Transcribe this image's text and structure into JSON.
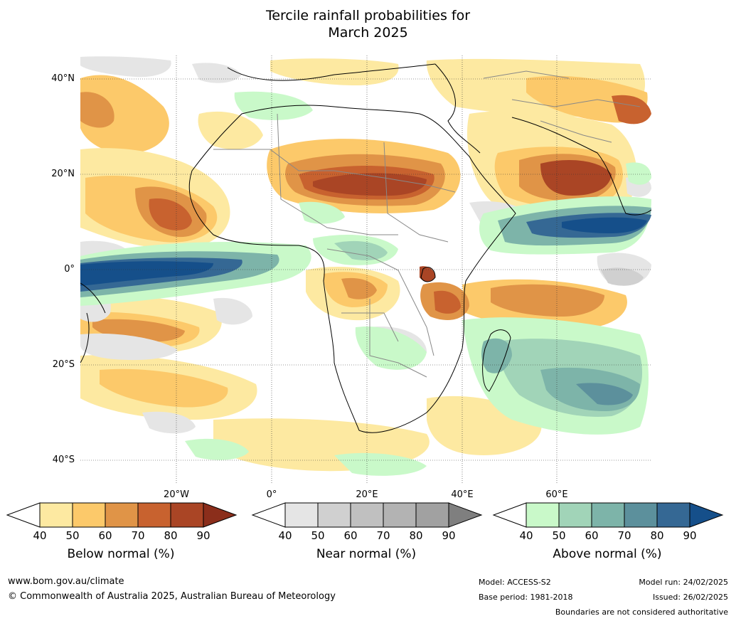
{
  "title": {
    "line1": "Tercile rainfall probabilities for",
    "line2": "March 2025"
  },
  "map": {
    "lat_labels": [
      "40°N",
      "20°N",
      "0°",
      "20°S",
      "40°S"
    ],
    "lon_labels": [
      "20°W",
      "0°",
      "20°E",
      "40°E",
      "60°E"
    ]
  },
  "colorbars": [
    {
      "title": "Below normal (%)",
      "ticks": [
        "40",
        "50",
        "60",
        "70",
        "80",
        "90"
      ],
      "colors": [
        "#ffffff",
        "#fde9a1",
        "#fcc96a",
        "#e09447",
        "#c8622f",
        "#aa4525",
        "#8b2e1b"
      ]
    },
    {
      "title": "Near normal (%)",
      "ticks": [
        "40",
        "50",
        "60",
        "70",
        "80",
        "90"
      ],
      "colors": [
        "#ffffff",
        "#e5e5e5",
        "#d0d0d0",
        "#c0c0c0",
        "#b3b3b3",
        "#a1a1a1",
        "#7f7f7f"
      ]
    },
    {
      "title": "Above normal (%)",
      "ticks": [
        "40",
        "50",
        "60",
        "70",
        "80",
        "90"
      ],
      "colors": [
        "#ffffff",
        "#c9f9c9",
        "#a1d4b8",
        "#7db4a9",
        "#5c909c",
        "#356894",
        "#154f8a"
      ]
    }
  ],
  "footer": {
    "website": "www.bom.gov.au/climate",
    "copyright": "© Commonwealth of Australia 2025, Australian Bureau of Meteorology",
    "model": "Model: ACCESS-S2",
    "base_period": "Base period: 1981-2018",
    "model_run": "Model run: 24/02/2025",
    "issued": "Issued: 26/02/2025",
    "disclaimer": "Boundaries are not considered authoritative"
  }
}
